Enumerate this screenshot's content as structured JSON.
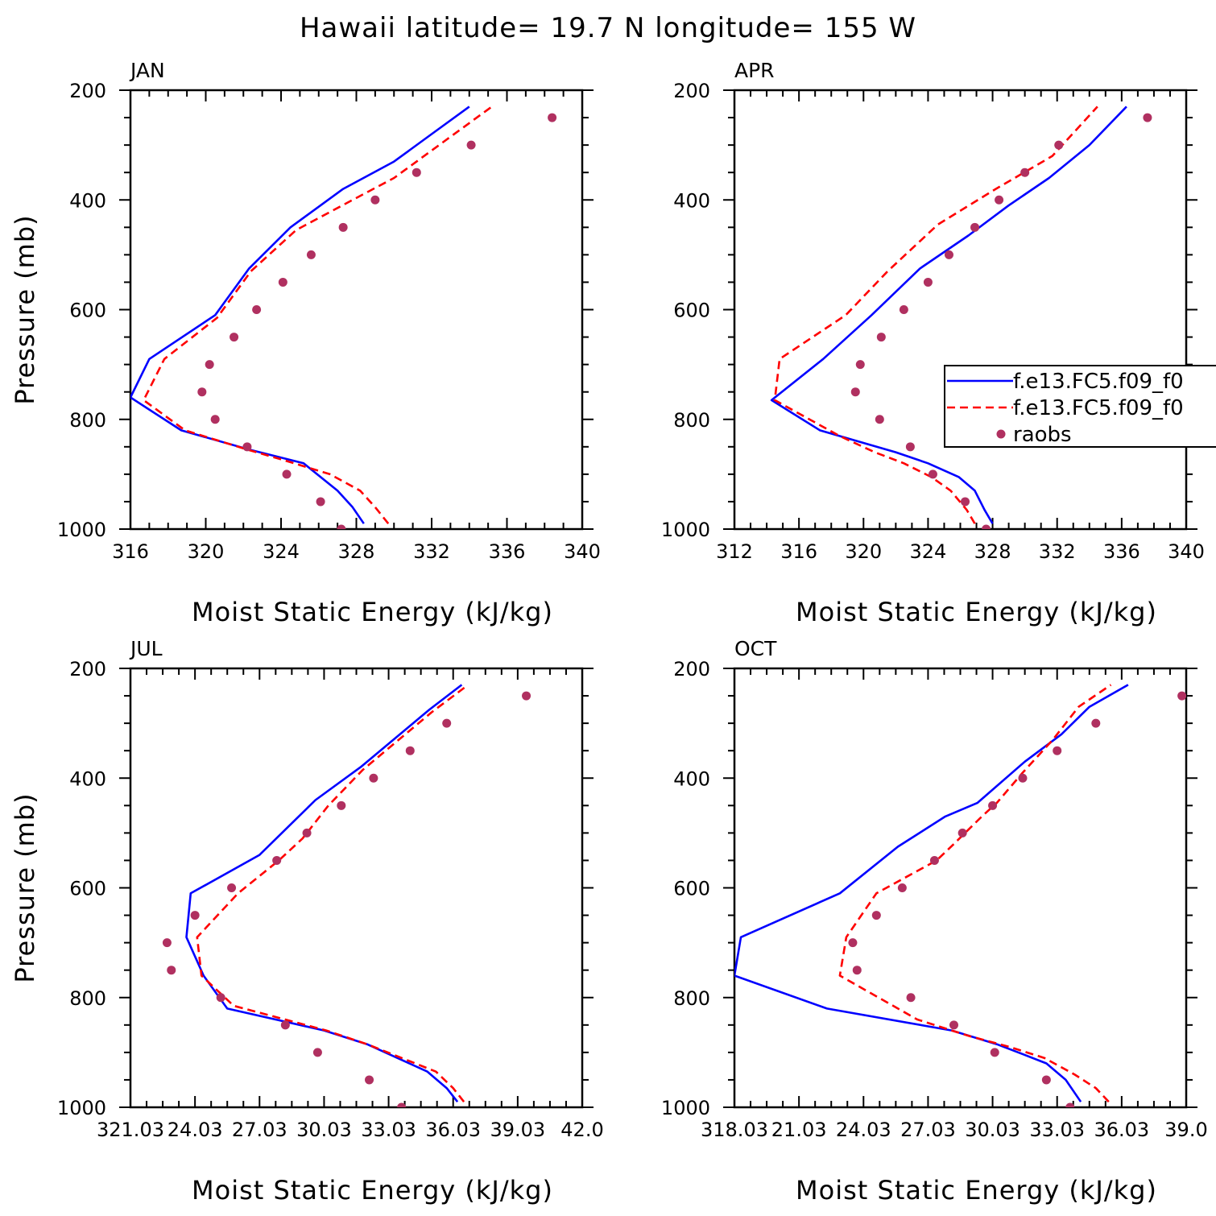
{
  "figure": {
    "title": "Hawaii  latitude= 19.7 N longitude= 155 W",
    "colors": {
      "model1": "#0000ff",
      "model2": "#ff0000",
      "raobs": "#b03060",
      "axes": "#000000"
    }
  },
  "chart_data": [
    {
      "type": "line",
      "panel": "JAN",
      "xlabel": "Moist Static Energy (kJ/kg)",
      "ylabel": "Pressure (mb)",
      "xlim": [
        316,
        340
      ],
      "ylim": [
        1000,
        200
      ],
      "x_ticks": [
        316,
        320,
        324,
        328,
        332,
        336,
        340
      ],
      "x_tick_labels": [
        "316",
        "320",
        "324",
        "328",
        "332",
        "336",
        "340"
      ],
      "y_ticks": [
        200,
        400,
        600,
        800,
        1000
      ],
      "y_tick_labels": [
        "200",
        "400",
        "600",
        "800",
        "1000"
      ],
      "series": [
        {
          "name": "f.e13.FC5.f09_f0",
          "style": "solid",
          "color": "#0000ff",
          "points": [
            [
              328.4,
              990
            ],
            [
              327.8,
              960
            ],
            [
              327.0,
              930
            ],
            [
              325.2,
              880
            ],
            [
              322.3,
              855
            ],
            [
              318.7,
              820
            ],
            [
              316.0,
              760
            ],
            [
              317.0,
              690
            ],
            [
              320.5,
              610
            ],
            [
              322.3,
              525
            ],
            [
              324.5,
              450
            ],
            [
              327.3,
              380
            ],
            [
              330.0,
              330
            ],
            [
              332.0,
              280
            ],
            [
              334.0,
              230
            ]
          ]
        },
        {
          "name": "f.e13.FC5.f09_f0",
          "style": "dashed",
          "color": "#ff0000",
          "points": [
            [
              329.7,
              990
            ],
            [
              329.0,
              960
            ],
            [
              328.2,
              930
            ],
            [
              326.6,
              900
            ],
            [
              324.2,
              875
            ],
            [
              322.2,
              855
            ],
            [
              318.9,
              820
            ],
            [
              316.7,
              765
            ],
            [
              317.8,
              690
            ],
            [
              320.6,
              615
            ],
            [
              322.4,
              530
            ],
            [
              324.8,
              455
            ],
            [
              327.8,
              400
            ],
            [
              330.0,
              360
            ],
            [
              332.0,
              310
            ],
            [
              335.2,
              230
            ]
          ]
        },
        {
          "name": "raobs",
          "style": "markers",
          "color": "#b03060",
          "points": [
            [
              327.2,
              1000
            ],
            [
              326.1,
              950
            ],
            [
              324.3,
              900
            ],
            [
              322.2,
              850
            ],
            [
              320.5,
              800
            ],
            [
              319.8,
              750
            ],
            [
              320.2,
              700
            ],
            [
              321.5,
              650
            ],
            [
              322.7,
              600
            ],
            [
              324.1,
              550
            ],
            [
              325.6,
              500
            ],
            [
              327.3,
              450
            ],
            [
              329.0,
              400
            ],
            [
              331.2,
              350
            ],
            [
              334.1,
              300
            ],
            [
              338.4,
              250
            ]
          ]
        }
      ]
    },
    {
      "type": "line",
      "panel": "APR",
      "xlabel": "Moist Static Energy (kJ/kg)",
      "ylabel": "",
      "xlim": [
        312,
        340
      ],
      "ylim": [
        1000,
        200
      ],
      "x_ticks": [
        312,
        316,
        320,
        324,
        328,
        332,
        336,
        340
      ],
      "x_tick_labels": [
        "312",
        "316",
        "320",
        "324",
        "328",
        "332",
        "336",
        "340"
      ],
      "y_ticks": [
        200,
        400,
        600,
        800,
        1000
      ],
      "y_tick_labels": [
        "200",
        "400",
        "600",
        "800",
        "1000"
      ],
      "legend": {
        "placement": "right",
        "entries": [
          "f.e13.FC5.f09_f0",
          "f.e13.FC5.f09_f0",
          "raobs"
        ]
      },
      "series": [
        {
          "name": "f.e13.FC5.f09_f0",
          "style": "solid",
          "color": "#0000ff",
          "points": [
            [
              328.0,
              990
            ],
            [
              327.5,
              965
            ],
            [
              326.9,
              930
            ],
            [
              325.9,
              905
            ],
            [
              324.0,
              880
            ],
            [
              322.0,
              860
            ],
            [
              317.3,
              820
            ],
            [
              314.3,
              765
            ],
            [
              317.5,
              690
            ],
            [
              320.5,
              610
            ],
            [
              323.5,
              525
            ],
            [
              326.5,
              465
            ],
            [
              329.0,
              410
            ],
            [
              331.5,
              360
            ],
            [
              334.0,
              300
            ],
            [
              336.3,
              230
            ]
          ]
        },
        {
          "name": "f.e13.FC5.f09_f0",
          "style": "dashed",
          "color": "#ff0000",
          "points": [
            [
              326.9,
              990
            ],
            [
              326.4,
              965
            ],
            [
              325.4,
              930
            ],
            [
              324.2,
              905
            ],
            [
              322.5,
              880
            ],
            [
              320.7,
              860
            ],
            [
              318.5,
              830
            ],
            [
              314.5,
              765
            ],
            [
              314.8,
              690
            ],
            [
              318.9,
              610
            ],
            [
              321.5,
              530
            ],
            [
              324.6,
              445
            ],
            [
              328.2,
              380
            ],
            [
              331.7,
              320
            ],
            [
              334.5,
              230
            ]
          ]
        },
        {
          "name": "raobs",
          "style": "markers",
          "color": "#b03060",
          "points": [
            [
              327.6,
              1000
            ],
            [
              326.3,
              950
            ],
            [
              324.3,
              900
            ],
            [
              322.9,
              850
            ],
            [
              321.0,
              800
            ],
            [
              319.5,
              750
            ],
            [
              319.8,
              700
            ],
            [
              321.1,
              650
            ],
            [
              322.5,
              600
            ],
            [
              324.0,
              550
            ],
            [
              325.3,
              500
            ],
            [
              326.9,
              450
            ],
            [
              328.4,
              400
            ],
            [
              330.0,
              350
            ],
            [
              332.1,
              300
            ],
            [
              337.6,
              250
            ]
          ]
        }
      ]
    },
    {
      "type": "line",
      "panel": "JUL",
      "xlabel": "Moist Static Energy (kJ/kg)",
      "ylabel": "Pressure (mb)",
      "xlim": [
        321.0,
        342.0
      ],
      "ylim": [
        1000,
        200
      ],
      "x_ticks": [
        321.0,
        324.0,
        327.0,
        330.0,
        333.0,
        336.0,
        339.0,
        342.0
      ],
      "x_tick_labels": [
        "321.03",
        "24.03",
        "27.03",
        "30.03",
        "33.03",
        "36.03",
        "39.03",
        "42.0"
      ],
      "y_ticks": [
        200,
        400,
        600,
        800,
        1000
      ],
      "y_tick_labels": [
        "200",
        "400",
        "600",
        "800",
        "1000"
      ],
      "series": [
        {
          "name": "f.e13.FC5.f09_f0",
          "style": "solid",
          "color": "#0000ff",
          "points": [
            [
              336.2,
              990
            ],
            [
              335.7,
              965
            ],
            [
              334.8,
              935
            ],
            [
              333.4,
              910
            ],
            [
              332.0,
              885
            ],
            [
              330.0,
              860
            ],
            [
              325.5,
              820
            ],
            [
              324.4,
              760
            ],
            [
              323.6,
              690
            ],
            [
              323.8,
              610
            ],
            [
              327.0,
              540
            ],
            [
              329.6,
              440
            ],
            [
              331.7,
              380
            ],
            [
              334.9,
              275
            ],
            [
              336.4,
              230
            ]
          ]
        },
        {
          "name": "f.e13.FC5.f09_f0",
          "style": "dashed",
          "color": "#ff0000",
          "points": [
            [
              336.5,
              990
            ],
            [
              336.0,
              965
            ],
            [
              335.2,
              935
            ],
            [
              333.6,
              910
            ],
            [
              332.0,
              885
            ],
            [
              330.1,
              860
            ],
            [
              325.8,
              815
            ],
            [
              324.3,
              760
            ],
            [
              324.1,
              690
            ],
            [
              326.0,
              610
            ],
            [
              327.9,
              550
            ],
            [
              329.0,
              510
            ],
            [
              330.2,
              450
            ],
            [
              331.8,
              385
            ],
            [
              335.0,
              280
            ],
            [
              336.7,
              230
            ]
          ]
        },
        {
          "name": "raobs",
          "style": "markers",
          "color": "#b03060",
          "points": [
            [
              333.6,
              1000
            ],
            [
              332.1,
              950
            ],
            [
              329.7,
              900
            ],
            [
              328.2,
              850
            ],
            [
              325.2,
              800
            ],
            [
              322.9,
              750
            ],
            [
              322.7,
              700
            ],
            [
              324.0,
              650
            ],
            [
              325.7,
              600
            ],
            [
              327.8,
              550
            ],
            [
              329.2,
              500
            ],
            [
              330.8,
              450
            ],
            [
              332.3,
              400
            ],
            [
              334.0,
              350
            ],
            [
              335.7,
              300
            ],
            [
              339.4,
              250
            ]
          ]
        }
      ]
    },
    {
      "type": "line",
      "panel": "OCT",
      "xlabel": "Moist Static Energy (kJ/kg)",
      "ylabel": "",
      "xlim": [
        318.0,
        339.0
      ],
      "ylim": [
        1000,
        200
      ],
      "x_ticks": [
        318.0,
        321.0,
        324.0,
        327.0,
        330.0,
        333.0,
        336.0,
        339.0
      ],
      "x_tick_labels": [
        "318.03",
        "21.03",
        "24.03",
        "27.03",
        "30.03",
        "33.03",
        "36.03",
        "39.0"
      ],
      "y_ticks": [
        200,
        400,
        600,
        800,
        1000
      ],
      "y_tick_labels": [
        "200",
        "400",
        "600",
        "800",
        "1000"
      ],
      "series": [
        {
          "name": "f.e13.FC5.f09_f0",
          "style": "solid",
          "color": "#0000ff",
          "points": [
            [
              334.1,
              990
            ],
            [
              333.4,
              950
            ],
            [
              332.5,
              920
            ],
            [
              331.2,
              900
            ],
            [
              330.2,
              885
            ],
            [
              328.1,
              860
            ],
            [
              322.3,
              820
            ],
            [
              318.0,
              760
            ],
            [
              318.3,
              690
            ],
            [
              322.9,
              610
            ],
            [
              325.6,
              525
            ],
            [
              327.8,
              470
            ],
            [
              329.3,
              445
            ],
            [
              331.5,
              370
            ],
            [
              333.2,
              320
            ],
            [
              334.5,
              270
            ],
            [
              336.3,
              230
            ]
          ]
        },
        {
          "name": "f.e13.FC5.f09_f0",
          "style": "dashed",
          "color": "#ff0000",
          "points": [
            [
              335.4,
              990
            ],
            [
              334.8,
              965
            ],
            [
              333.8,
              940
            ],
            [
              332.4,
              910
            ],
            [
              330.8,
              890
            ],
            [
              328.9,
              870
            ],
            [
              326.5,
              840
            ],
            [
              322.9,
              760
            ],
            [
              323.2,
              690
            ],
            [
              324.6,
              610
            ],
            [
              327.4,
              550
            ],
            [
              328.2,
              520
            ],
            [
              329.5,
              470
            ],
            [
              330.2,
              445
            ],
            [
              331.4,
              390
            ],
            [
              332.8,
              330
            ],
            [
              334.0,
              270
            ],
            [
              335.5,
              230
            ]
          ]
        },
        {
          "name": "raobs",
          "style": "markers",
          "color": "#b03060",
          "points": [
            [
              333.6,
              1000
            ],
            [
              332.5,
              950
            ],
            [
              330.1,
              900
            ],
            [
              328.2,
              850
            ],
            [
              326.2,
              800
            ],
            [
              323.7,
              750
            ],
            [
              323.5,
              700
            ],
            [
              324.6,
              650
            ],
            [
              325.8,
              600
            ],
            [
              327.3,
              550
            ],
            [
              328.6,
              500
            ],
            [
              330.0,
              450
            ],
            [
              331.4,
              400
            ],
            [
              333.0,
              350
            ],
            [
              334.8,
              300
            ],
            [
              338.8,
              250
            ]
          ]
        }
      ]
    }
  ]
}
